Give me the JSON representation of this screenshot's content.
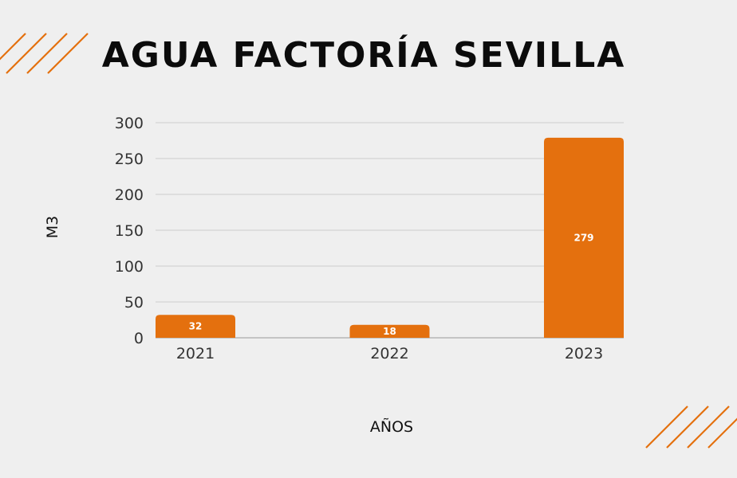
{
  "colors": {
    "background": "#efefef",
    "bar": "#e4700e",
    "decoration": "#e4700e",
    "grid": "#cccccc",
    "title": "#0b0b0b"
  },
  "chart_data": {
    "type": "bar",
    "title": "AGUA FACTORÍA SEVILLA",
    "xlabel": "AÑOS",
    "ylabel": "M3",
    "categories": [
      "2021",
      "2022",
      "2023"
    ],
    "values": [
      32,
      18,
      279
    ],
    "data_labels": [
      "32",
      "18",
      "279"
    ],
    "ylim": [
      0,
      300
    ],
    "yticks": [
      0,
      50,
      100,
      150,
      200,
      250,
      300
    ],
    "grid": true,
    "legend": "none"
  }
}
